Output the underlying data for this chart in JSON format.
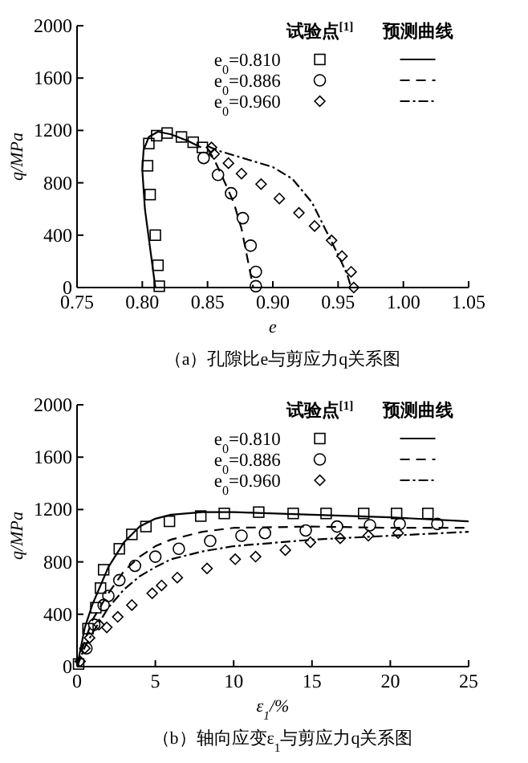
{
  "chart_data": [
    {
      "type": "scatter",
      "title": "（a）孔隙比e与剪应力q关系图",
      "xlabel": "e",
      "ylabel": "q/MPa",
      "xlim": [
        0.75,
        1.05
      ],
      "xticks": [
        0.75,
        {
          "value": 0.8,
          "label": "0.80"
        },
        0.85,
        {
          "value": 0.9,
          "label": "0.90"
        },
        0.95,
        {
          "value": 1.0,
          "label": "1.00"
        },
        1.05
      ],
      "ylim": [
        0,
        2000
      ],
      "yticks": [
        0,
        400,
        800,
        1200,
        1600,
        2000
      ],
      "grid": false,
      "legend": "top right",
      "annotations": [
        "试验点$^{[1]}$",
        "预测曲线"
      ],
      "series": [
        {
          "type": "scatter",
          "name": "e$_{0}$=0.810",
          "color": "#000000",
          "marker": "square",
          "x": [
            0.813,
            0.812,
            0.81,
            0.806,
            0.804,
            0.805,
            0.811,
            0.819,
            0.83,
            0.839,
            0.846
          ],
          "values": [
            10,
            170,
            400,
            710,
            930,
            1100,
            1160,
            1180,
            1150,
            1110,
            1070
          ]
        },
        {
          "type": "scatter",
          "name": "e$_{0}$=0.886",
          "color": "#000000",
          "marker": "circle",
          "x": [
            0.847,
            0.858,
            0.868,
            0.877,
            0.883,
            0.887,
            0.887
          ],
          "values": [
            990,
            860,
            720,
            530,
            320,
            120,
            10
          ]
        },
        {
          "type": "scatter",
          "name": "e$_{0}$=0.960",
          "color": "#000000",
          "marker": "diamond",
          "x": [
            0.853,
            0.855,
            0.866,
            0.876,
            0.891,
            0.905,
            0.92,
            0.932,
            0.945,
            0.953,
            0.96,
            0.962
          ],
          "values": [
            1070,
            1020,
            950,
            870,
            790,
            680,
            570,
            470,
            360,
            240,
            120,
            0
          ]
        },
        {
          "type": "line",
          "color": "#000000",
          "line_style": "solid",
          "marker": "none",
          "x": [
            0.81,
            0.806,
            0.802,
            0.8,
            0.801,
            0.805,
            0.812,
            0.822,
            0.835,
            0.845
          ],
          "values": [
            0,
            300,
            600,
            900,
            1050,
            1150,
            1190,
            1170,
            1120,
            1070
          ]
        },
        {
          "type": "line",
          "color": "#000000",
          "line_style": "dashed",
          "marker": "none",
          "x": [
            0.85,
            0.855,
            0.862,
            0.87,
            0.876,
            0.88,
            0.883,
            0.885
          ],
          "values": [
            1060,
            980,
            830,
            650,
            450,
            250,
            100,
            0
          ]
        },
        {
          "type": "line",
          "color": "#000000",
          "line_style": "dashdot",
          "marker": "none",
          "x": [
            0.85,
            0.86,
            0.88,
            0.9,
            0.915,
            0.93,
            0.94,
            0.95,
            0.957,
            0.96
          ],
          "values": [
            1080,
            1040,
            980,
            920,
            830,
            650,
            450,
            250,
            100,
            0
          ]
        }
      ]
    },
    {
      "type": "scatter",
      "title": "（b）轴向应变ε$_{1}$与剪应力q关系图",
      "xlabel": "ε$_{1}$/%",
      "ylabel": "q/MPa",
      "xlim": [
        0,
        25
      ],
      "xticks": [
        0,
        5,
        10,
        15,
        20,
        25
      ],
      "ylim": [
        0,
        2000
      ],
      "yticks": [
        0,
        400,
        800,
        1200,
        1600,
        2000
      ],
      "grid": false,
      "legend": "top right",
      "annotations": [
        "试验点$^{[1]}$",
        "预测曲线"
      ],
      "series": [
        {
          "type": "scatter",
          "name": "e$_{0}$=0.810",
          "color": "#000000",
          "marker": "square",
          "x": [
            0.1,
            0.7,
            1.2,
            1.5,
            1.7,
            2.7,
            3.5,
            4.4,
            5.9,
            7.9,
            9.4,
            11.6,
            13.8,
            15.9,
            18.3,
            20.4,
            22.4
          ],
          "values": [
            20,
            290,
            450,
            600,
            740,
            900,
            1010,
            1070,
            1110,
            1150,
            1170,
            1180,
            1170,
            1170,
            1170,
            1170,
            1170
          ]
        },
        {
          "type": "scatter",
          "name": "e$_{0}$=0.886",
          "color": "#000000",
          "marker": "circle",
          "x": [
            0.6,
            1.1,
            1.7,
            2.0,
            2.7,
            3.7,
            5.0,
            6.5,
            8.5,
            10.5,
            12.0,
            14.6,
            16.6,
            18.7,
            20.6,
            23.0
          ],
          "values": [
            140,
            320,
            470,
            540,
            660,
            770,
            840,
            900,
            960,
            1000,
            1020,
            1040,
            1070,
            1080,
            1090,
            1090
          ]
        },
        {
          "type": "scatter",
          "name": "e$_{0}$=0.960",
          "color": "#000000",
          "marker": "diamond",
          "x": [
            0.2,
            0.5,
            0.8,
            1.4,
            1.9,
            2.6,
            3.5,
            4.8,
            5.4,
            6.4,
            8.3,
            10.1,
            11.4,
            13.3,
            14.9,
            16.8,
            18.6,
            20.5
          ],
          "values": [
            40,
            140,
            220,
            320,
            300,
            380,
            470,
            560,
            620,
            680,
            750,
            820,
            840,
            890,
            950,
            980,
            1000,
            1020
          ]
        },
        {
          "type": "line",
          "color": "#000000",
          "line_style": "solid",
          "marker": "none",
          "x": [
            0,
            0.5,
            1,
            2,
            3,
            4,
            5,
            6,
            8,
            10,
            15,
            20,
            25
          ],
          "values": [
            0,
            300,
            480,
            760,
            950,
            1070,
            1130,
            1160,
            1180,
            1180,
            1160,
            1140,
            1110
          ]
        },
        {
          "type": "line",
          "color": "#000000",
          "line_style": "dashed",
          "marker": "none",
          "x": [
            0,
            0.5,
            1,
            2,
            3,
            4,
            5,
            6,
            8,
            10,
            15,
            20,
            25
          ],
          "values": [
            0,
            200,
            360,
            560,
            730,
            840,
            920,
            970,
            1030,
            1060,
            1070,
            1060,
            1060
          ]
        },
        {
          "type": "line",
          "color": "#000000",
          "line_style": "dashdot",
          "marker": "none",
          "x": [
            0,
            0.5,
            1,
            2,
            3,
            4,
            5,
            6,
            8,
            10,
            15,
            20,
            25
          ],
          "values": [
            0,
            150,
            260,
            450,
            590,
            690,
            760,
            820,
            880,
            920,
            970,
            1000,
            1030
          ]
        }
      ]
    }
  ]
}
